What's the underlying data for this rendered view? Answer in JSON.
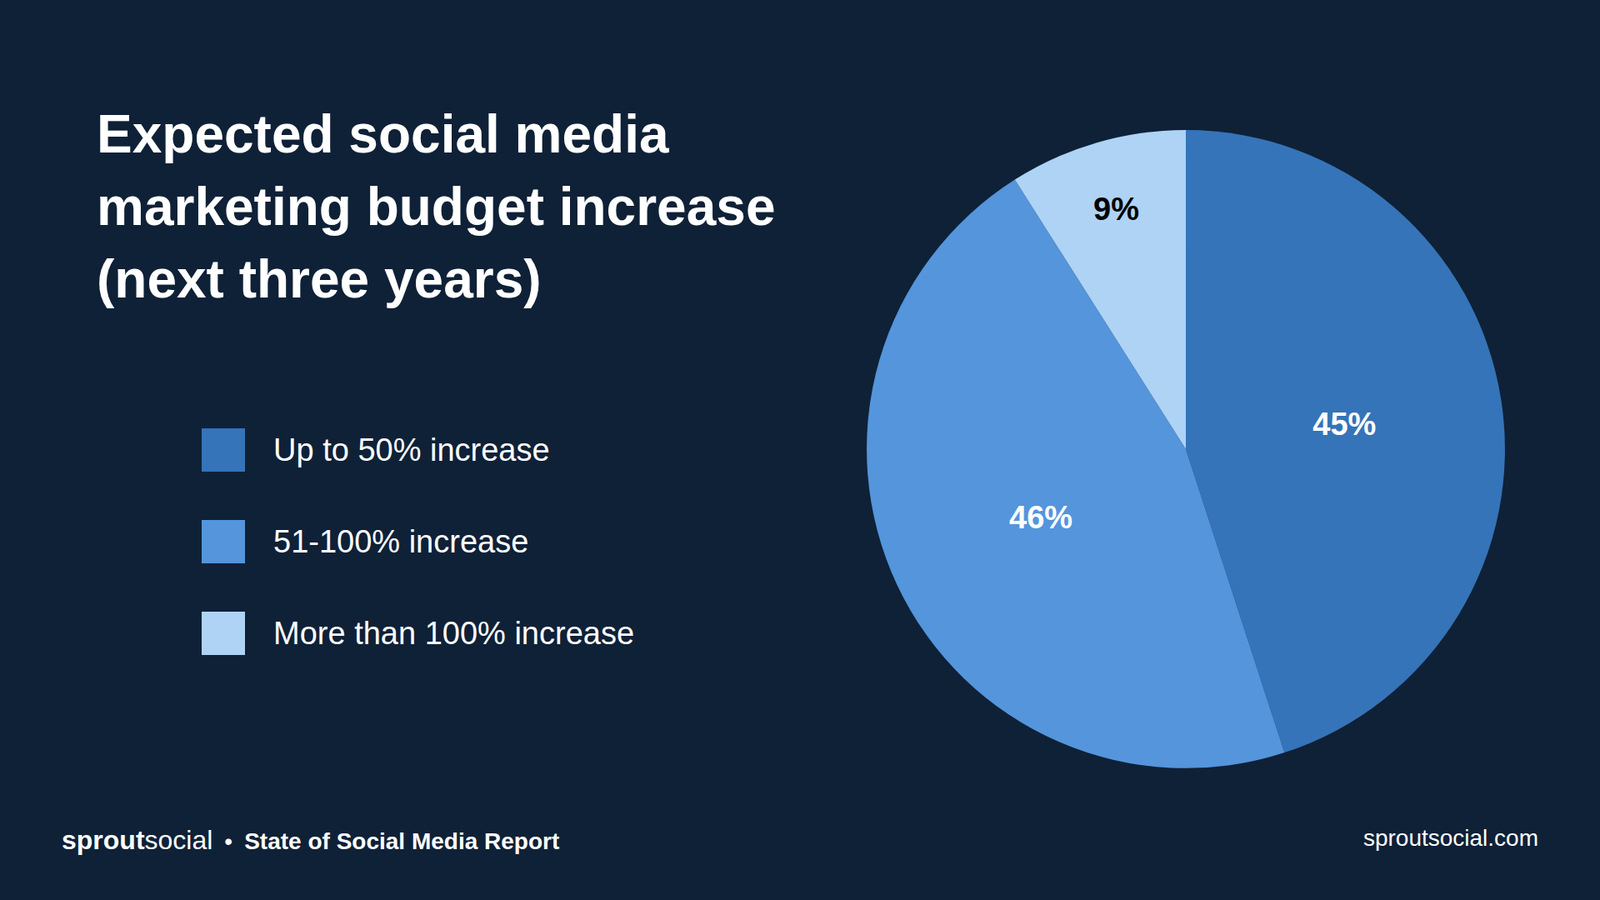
{
  "chart_data": {
    "type": "pie",
    "title": "Expected social media marketing budget increase (next three years)",
    "categories": [
      "Up to 50% increase",
      "51-100% increase",
      "More than 100% increase"
    ],
    "values": [
      45,
      46,
      9
    ],
    "value_labels": [
      "45%",
      "46%",
      "9%"
    ],
    "colors": [
      "#3574b8",
      "#5495dc",
      "#aed3f5"
    ],
    "data_labels": true,
    "legend": "left"
  },
  "footer": {
    "brand": [
      "sprout",
      "social"
    ],
    "separator": "•",
    "report": "State of Social Media Report",
    "url": "sproutsocial.com"
  }
}
